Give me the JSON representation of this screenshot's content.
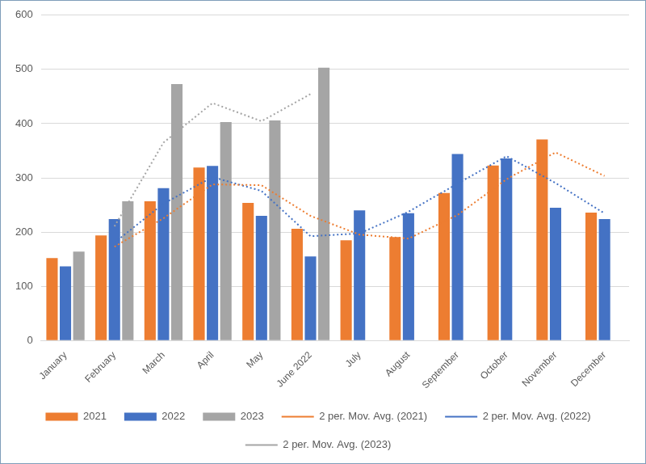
{
  "chart_data": {
    "type": "bar",
    "categories": [
      "January",
      "February",
      "March",
      "April",
      "May",
      "June 2022",
      "July",
      "August",
      "September",
      "October",
      "November",
      "December"
    ],
    "series": [
      {
        "name": "2021",
        "color": "#ED7D31",
        "values": [
          152,
          194,
          257,
          319,
          254,
          206,
          185,
          191,
          272,
          323,
          371,
          236
        ]
      },
      {
        "name": "2022",
        "color": "#4472C4",
        "values": [
          137,
          224,
          281,
          322,
          230,
          155,
          240,
          235,
          344,
          336,
          245,
          224
        ]
      },
      {
        "name": "2023",
        "color": "#A5A5A5",
        "values": [
          164,
          257,
          473,
          403,
          406,
          503,
          null,
          null,
          null,
          null,
          null,
          null
        ]
      },
      {
        "name": "2 per. Mov. Avg. (2021)",
        "type": "line",
        "line_style": "dotted",
        "color": "#ED7D31",
        "values": [
          null,
          173,
          225.5,
          288,
          286.5,
          230,
          195.5,
          188,
          231.5,
          297.5,
          347,
          303.5
        ]
      },
      {
        "name": "2 per. Mov. Avg. (2022)",
        "type": "line",
        "line_style": "dotted",
        "color": "#4472C4",
        "values": [
          null,
          180.5,
          252.5,
          301.5,
          276,
          192.5,
          197.5,
          237.5,
          289.5,
          340,
          290.5,
          234.5
        ]
      },
      {
        "name": "2 per. Mov. Avg. (2023)",
        "type": "line",
        "line_style": "dotted",
        "color": "#A5A5A5",
        "values": [
          null,
          210.5,
          365,
          438,
          404.5,
          454.5,
          null,
          null,
          null,
          null,
          null,
          null
        ]
      }
    ],
    "ylim": [
      0,
      600
    ],
    "yticks": [
      0,
      100,
      200,
      300,
      400,
      500,
      600
    ],
    "grid": true,
    "legend": "bottom"
  }
}
